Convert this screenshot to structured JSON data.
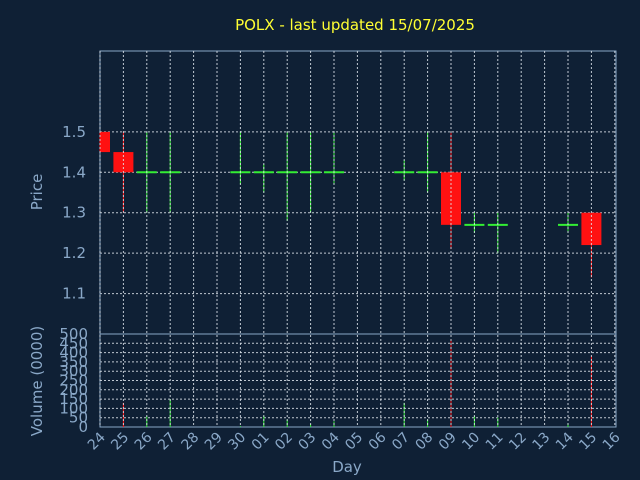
{
  "chart_data": {
    "type": "candlestick",
    "title": "POLX - last updated 15/07/2025",
    "xlabel": "Day",
    "price_ylabel": "Price",
    "volume_ylabel": "Volume (0000)",
    "x_ticks": [
      "24",
      "25",
      "26",
      "27",
      "28",
      "29",
      "30",
      "01",
      "02",
      "03",
      "04",
      "05",
      "06",
      "07",
      "08",
      "09",
      "10",
      "11",
      "12",
      "13",
      "14",
      "15",
      "16"
    ],
    "price_ticks": [
      1.1,
      1.2,
      1.3,
      1.4,
      1.5
    ],
    "price_ylim": [
      1.0,
      1.7
    ],
    "volume_ticks": [
      0,
      50,
      100,
      150,
      200,
      250,
      300,
      350,
      400,
      450,
      500
    ],
    "volume_ylim": [
      0,
      500
    ],
    "up_color": "#33ee33",
    "down_color": "#ff1111",
    "candles": [
      {
        "x": 0,
        "open": 1.5,
        "high": 1.5,
        "low": 1.45,
        "close": 1.45,
        "volume": 0
      },
      {
        "x": 1,
        "open": 1.45,
        "high": 1.5,
        "low": 1.3,
        "close": 1.4,
        "volume": 130
      },
      {
        "x": 2,
        "open": 1.4,
        "high": 1.5,
        "low": 1.3,
        "close": 1.4,
        "volume": 60
      },
      {
        "x": 3,
        "open": 1.4,
        "high": 1.5,
        "low": 1.3,
        "close": 1.4,
        "volume": 150
      },
      {
        "x": 6,
        "open": 1.4,
        "high": 1.5,
        "low": 1.37,
        "close": 1.4,
        "volume": 5
      },
      {
        "x": 7,
        "open": 1.4,
        "high": 1.42,
        "low": 1.35,
        "close": 1.4,
        "volume": 60
      },
      {
        "x": 8,
        "open": 1.4,
        "high": 1.5,
        "low": 1.28,
        "close": 1.4,
        "volume": 40
      },
      {
        "x": 9,
        "open": 1.4,
        "high": 1.5,
        "low": 1.3,
        "close": 1.4,
        "volume": 15
      },
      {
        "x": 10,
        "open": 1.4,
        "high": 1.5,
        "low": 1.37,
        "close": 1.4,
        "volume": 30
      },
      {
        "x": 13,
        "open": 1.4,
        "high": 1.43,
        "low": 1.38,
        "close": 1.4,
        "volume": 130
      },
      {
        "x": 14,
        "open": 1.4,
        "high": 1.5,
        "low": 1.35,
        "close": 1.4,
        "volume": 40
      },
      {
        "x": 15,
        "open": 1.4,
        "high": 1.5,
        "low": 1.21,
        "close": 1.27,
        "volume": 470
      },
      {
        "x": 16,
        "open": 1.27,
        "high": 1.3,
        "low": 1.25,
        "close": 1.27,
        "volume": 60
      },
      {
        "x": 17,
        "open": 1.27,
        "high": 1.3,
        "low": 1.2,
        "close": 1.27,
        "volume": 50
      },
      {
        "x": 20,
        "open": 1.27,
        "high": 1.3,
        "low": 1.25,
        "close": 1.27,
        "volume": 20
      },
      {
        "x": 21,
        "open": 1.3,
        "high": 1.3,
        "low": 1.14,
        "close": 1.22,
        "volume": 380
      }
    ],
    "grid": true
  }
}
